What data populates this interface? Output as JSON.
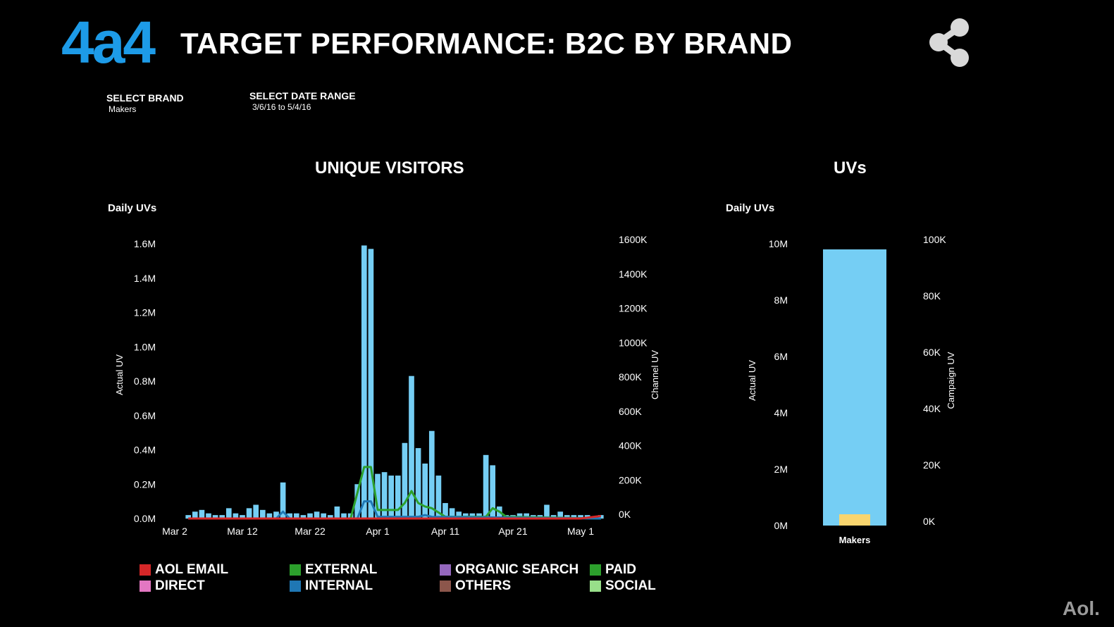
{
  "header": {
    "logo": "4a4",
    "title": "TARGET PERFORMANCE: B2C BY BRAND"
  },
  "filters": {
    "brand_label": "SELECT BRAND",
    "brand_value": "Makers",
    "date_label": "SELECT DATE RANGE",
    "date_value": "3/6/16 to 5/4/16"
  },
  "footer": {
    "brand": "Aol."
  },
  "colors": {
    "bar": "#75cef4",
    "aol_email": "#d62728",
    "direct": "#e377c2",
    "external": "#2ca02c",
    "internal": "#1f77b4",
    "organic_search": "#9467bd",
    "others": "#8c564b",
    "paid": "#2ca02c",
    "social": "#98df8a",
    "campaign_bar": "#f9d56e"
  },
  "legend": [
    {
      "label": "AOL EMAIL",
      "color": "#d62728"
    },
    {
      "label": "DIRECT",
      "color": "#e377c2"
    },
    {
      "label": "EXTERNAL",
      "color": "#2ca02c"
    },
    {
      "label": "INTERNAL",
      "color": "#1f77b4"
    },
    {
      "label": "ORGANIC SEARCH",
      "color": "#9467bd"
    },
    {
      "label": "OTHERS",
      "color": "#8c564b"
    },
    {
      "label": "PAID",
      "color": "#2ca02c"
    },
    {
      "label": "SOCIAL",
      "color": "#98df8a"
    }
  ],
  "chart_data": [
    {
      "type": "bar",
      "title": "UNIQUE VISITORS",
      "subtitle": "Daily UVs",
      "ylabel": "Actual UV",
      "y2label": "Channel UV",
      "ylim": [
        0,
        1.6
      ],
      "y_ticks": [
        "0.0M",
        "0.2M",
        "0.4M",
        "0.6M",
        "0.8M",
        "1.0M",
        "1.2M",
        "1.4M",
        "1.6M"
      ],
      "y2lim": [
        0,
        1600
      ],
      "y2_ticks": [
        "0K",
        "200K",
        "400K",
        "600K",
        "800K",
        "1000K",
        "1200K",
        "1400K",
        "1600K"
      ],
      "x_ticks": [
        "Mar 2",
        "Mar 12",
        "Mar 22",
        "Apr 1",
        "Apr 11",
        "Apr 21",
        "May 1"
      ],
      "x_tick_days": [
        0,
        10,
        20,
        30,
        40,
        50,
        60
      ],
      "bars_day": [
        2,
        3,
        4,
        5,
        6,
        7,
        8,
        9,
        10,
        11,
        12,
        13,
        14,
        15,
        16,
        17,
        18,
        19,
        20,
        21,
        22,
        23,
        24,
        25,
        26,
        27,
        28,
        29,
        30,
        31,
        32,
        33,
        34,
        35,
        36,
        37,
        38,
        39,
        40,
        41,
        42,
        43,
        44,
        45,
        46,
        47,
        48,
        49,
        50,
        51,
        52,
        53,
        54,
        55,
        56,
        57,
        58,
        59,
        60,
        61,
        62,
        63
      ],
      "bars_value_M": [
        0.02,
        0.04,
        0.05,
        0.03,
        0.02,
        0.02,
        0.06,
        0.03,
        0.02,
        0.06,
        0.08,
        0.05,
        0.03,
        0.04,
        0.21,
        0.03,
        0.03,
        0.02,
        0.03,
        0.04,
        0.03,
        0.02,
        0.07,
        0.03,
        0.03,
        0.2,
        1.59,
        1.57,
        0.26,
        0.27,
        0.25,
        0.25,
        0.44,
        0.83,
        0.41,
        0.32,
        0.51,
        0.25,
        0.09,
        0.06,
        0.04,
        0.03,
        0.03,
        0.03,
        0.37,
        0.31,
        0.07,
        0.02,
        0.02,
        0.03,
        0.03,
        0.02,
        0.02,
        0.08,
        0.02,
        0.04,
        0.02,
        0.02,
        0.02,
        0.02,
        0.01,
        0.02
      ],
      "series": [
        {
          "name": "EXTERNAL",
          "color": "#2ca02c",
          "x": [
            2,
            26,
            27,
            28,
            29,
            30,
            31,
            33,
            34,
            35,
            36,
            37,
            38,
            40,
            46,
            47,
            48,
            49,
            63
          ],
          "values": [
            0,
            0,
            150,
            300,
            300,
            50,
            50,
            50,
            90,
            160,
            90,
            70,
            60,
            10,
            10,
            60,
            40,
            10,
            0
          ]
        },
        {
          "name": "INTERNAL",
          "color": "#1f77b4",
          "x": [
            2,
            15,
            16,
            17,
            27,
            28,
            29,
            30,
            36,
            37,
            38,
            63
          ],
          "values": [
            0,
            0,
            40,
            0,
            0,
            100,
            100,
            10,
            10,
            20,
            10,
            0
          ]
        },
        {
          "name": "AOL EMAIL",
          "color": "#d62728",
          "x": [
            2,
            60,
            63
          ],
          "values": [
            0,
            0,
            15
          ]
        }
      ]
    },
    {
      "type": "bar",
      "title": "UVs",
      "subtitle": "Daily UVs",
      "ylabel": "Actual UV",
      "y2label": "Campaign UV",
      "categories": [
        "Makers"
      ],
      "values_M": [
        9.8
      ],
      "campaign_values_K": [
        4
      ],
      "ylim": [
        0,
        10
      ],
      "y_ticks": [
        "0M",
        "2M",
        "4M",
        "6M",
        "8M",
        "10M"
      ],
      "y2lim": [
        0,
        100
      ],
      "y2_ticks": [
        "0K",
        "20K",
        "40K",
        "60K",
        "80K",
        "100K"
      ]
    }
  ]
}
